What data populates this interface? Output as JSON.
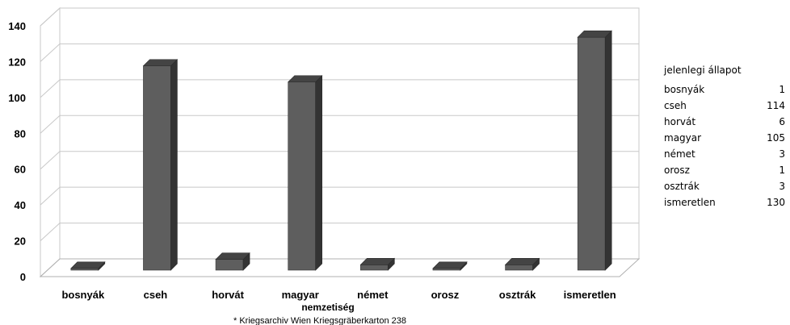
{
  "chart_data": {
    "type": "bar",
    "categories": [
      "bosnyák",
      "cseh",
      "horvát",
      "magyar",
      "német",
      "orosz",
      "osztrák",
      "ismeretlen"
    ],
    "values": [
      1,
      114,
      6,
      105,
      3,
      1,
      3,
      130
    ],
    "xlabel": "nemzetiség",
    "ylabel": "",
    "ylim": [
      0,
      140
    ],
    "yticks": [
      "0",
      "20",
      "40",
      "60",
      "80",
      "100",
      "120",
      "140"
    ],
    "grid": true,
    "bar_color": "#5e5e5e"
  },
  "source_note": "* Kriegsarchiv Wien Kriegsgräberkarton 238",
  "table": {
    "title": "jelenlegi állapot",
    "rows": [
      {
        "label": "bosnyák",
        "value": "1"
      },
      {
        "label": "cseh",
        "value": "114"
      },
      {
        "label": "horvát",
        "value": "6"
      },
      {
        "label": "magyar",
        "value": "105"
      },
      {
        "label": "német",
        "value": "3"
      },
      {
        "label": "orosz",
        "value": "1"
      },
      {
        "label": "osztrák",
        "value": "3"
      },
      {
        "label": "ismeretlen",
        "value": "130"
      }
    ]
  }
}
